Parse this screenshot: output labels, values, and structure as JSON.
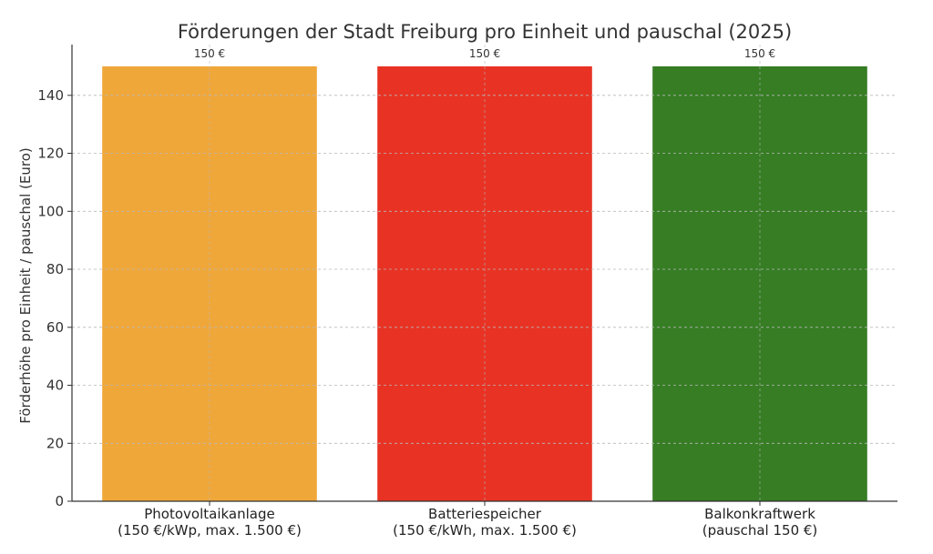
{
  "chart_data": {
    "type": "bar",
    "title": "Förderungen der Stadt Freiburg pro Einheit und pauschal (2025)",
    "xlabel": "",
    "ylabel": "Förderhöhe pro Einheit / pauschal (Euro)",
    "categories": [
      [
        "Photovoltaikanlage",
        "(150 €/kWp, max. 1.500 €)"
      ],
      [
        "Batteriespeicher",
        "(150 €/kWh, max. 1.500 €)"
      ],
      [
        "Balkonkraftwerk",
        "(pauschal 150 €)"
      ]
    ],
    "values": [
      150,
      150,
      150
    ],
    "data_labels": [
      "150 €",
      "150 €",
      "150 €"
    ],
    "colors": [
      "#f0a73a",
      "#e83324",
      "#367d24"
    ],
    "ylim": [
      0,
      157.5
    ],
    "yticks": [
      0,
      20,
      40,
      60,
      80,
      100,
      120,
      140
    ],
    "grid": true
  }
}
